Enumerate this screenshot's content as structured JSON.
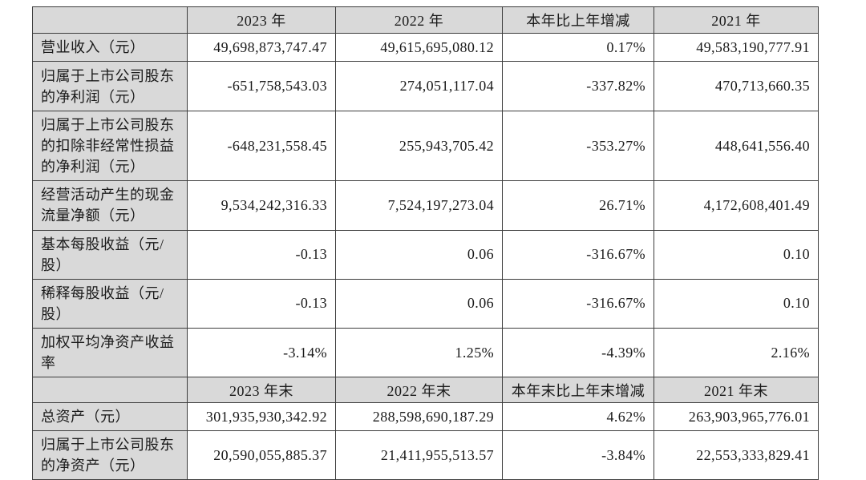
{
  "table": {
    "period_header": {
      "blank": "",
      "columns": [
        "2023 年",
        "2022 年",
        "本年比上年增减",
        "2021 年"
      ]
    },
    "annual_rows": [
      {
        "label": "营业收入（元）",
        "values": [
          "49,698,873,747.47",
          "49,615,695,080.12",
          "0.17%",
          "49,583,190,777.91"
        ]
      },
      {
        "label": "归属于上市公司股东\n的净利润（元）",
        "values": [
          "-651,758,543.03",
          "274,051,117.04",
          "-337.82%",
          "470,713,660.35"
        ]
      },
      {
        "label": "归属于上市公司股东\n的扣除非经常性损益\n的净利润（元）",
        "values": [
          "-648,231,558.45",
          "255,943,705.42",
          "-353.27%",
          "448,641,556.40"
        ]
      },
      {
        "label": "经营活动产生的现金\n流量净额（元）",
        "values": [
          "9,534,242,316.33",
          "7,524,197,273.04",
          "26.71%",
          "4,172,608,401.49"
        ]
      },
      {
        "label": "基本每股收益（元/\n股）",
        "values": [
          "-0.13",
          "0.06",
          "-316.67%",
          "0.10"
        ]
      },
      {
        "label": "稀释每股收益（元/\n股）",
        "values": [
          "-0.13",
          "0.06",
          "-316.67%",
          "0.10"
        ]
      },
      {
        "label": "加权平均净资产收益\n率",
        "values": [
          "-3.14%",
          "1.25%",
          "-4.39%",
          "2.16%"
        ]
      }
    ],
    "eoy_header": {
      "blank": "",
      "columns": [
        "2023 年末",
        "2022 年末",
        "本年末比上年末增减",
        "2021 年末"
      ]
    },
    "eoy_rows": [
      {
        "label": "总资产（元）",
        "values": [
          "301,935,930,342.92",
          "288,598,690,187.29",
          "4.62%",
          "263,903,965,776.01"
        ]
      },
      {
        "label": "归属于上市公司股东\n的净资产（元）",
        "values": [
          "20,590,055,885.37",
          "21,411,955,513.57",
          "-3.84%",
          "22,553,333,829.41"
        ]
      }
    ],
    "colors": {
      "header_background": "#d9d9d9",
      "label_background": "#d9d9d9",
      "cell_background": "#ffffff",
      "border": "#3d3d3d",
      "text": "#1a1a1a"
    }
  }
}
